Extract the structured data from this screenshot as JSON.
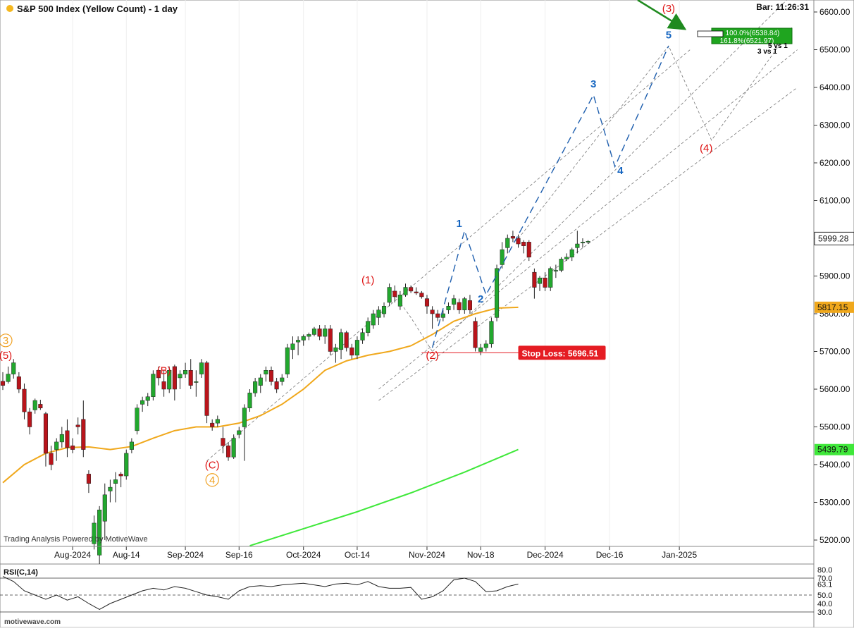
{
  "header": {
    "title": "S&P 500 Index (Yellow Count) - 1 day",
    "bar_time": "Bar: 11:26:31"
  },
  "watermark": "Trading Analysis Powered by MotiveWave",
  "footer": {
    "site": "motivewave.com"
  },
  "colors": {
    "up": "#22a82e",
    "down": "#b9141b",
    "ma_fast": "#f0a81c",
    "ma_slow": "#3fe83a",
    "wave_red": "#dd1111",
    "wave_blue": "#1565c0",
    "wave_orange": "#f0a020",
    "projection": "#1f5fae",
    "stop_loss": "#e51c23",
    "arrow": "#1f8a1f"
  },
  "chart_data": [
    {
      "type": "candlestick",
      "title": "S&P 500 Index (Yellow Count) - 1 day",
      "ylim": [
        5180,
        6650
      ],
      "y_ticks": [
        "5200.00",
        "5300.00",
        "5400.00",
        "5500.00",
        "5600.00",
        "5700.00",
        "5800.00",
        "5900.00",
        "6000.00",
        "6100.00",
        "6200.00",
        "6300.00",
        "6400.00",
        "6500.00",
        "6600.00"
      ],
      "y_tick_values": [
        5200,
        5300,
        5400,
        5500,
        5600,
        5700,
        5800,
        5900,
        6000,
        6100,
        6200,
        6300,
        6400,
        6500,
        6600
      ],
      "x_tick_labels": [
        "Aug-2024",
        "Aug-14",
        "Sep-2024",
        "Sep-16",
        "Oct-2024",
        "Oct-14",
        "Nov-2024",
        "Nov-18",
        "Dec-2024",
        "Dec-16",
        "Jan-2025"
      ],
      "x_tick_days": [
        13,
        23,
        34,
        44,
        56,
        66,
        79,
        89,
        101,
        113,
        126
      ],
      "candles": [
        [
          5621,
          5645,
          5598,
          5610
        ],
        [
          5620,
          5660,
          5615,
          5640
        ],
        [
          5640,
          5680,
          5628,
          5670
        ],
        [
          5633,
          5645,
          5590,
          5600
        ],
        [
          5600,
          5615,
          5520,
          5540
        ],
        [
          5540,
          5550,
          5480,
          5500
        ],
        [
          5545,
          5575,
          5535,
          5570
        ],
        [
          5560,
          5572,
          5545,
          5550
        ],
        [
          5535,
          5540,
          5395,
          5430
        ],
        [
          5430,
          5450,
          5385,
          5400
        ],
        [
          5440,
          5470,
          5410,
          5460
        ],
        [
          5460,
          5500,
          5445,
          5480
        ],
        [
          5490,
          5520,
          5420,
          5445
        ],
        [
          5450,
          5470,
          5430,
          5440
        ],
        [
          5505,
          5525,
          5480,
          5500
        ],
        [
          5520,
          5570,
          5420,
          5440
        ],
        [
          5375,
          5385,
          5325,
          5350
        ],
        [
          5190,
          5265,
          5175,
          5245
        ],
        [
          5160,
          5290,
          5130,
          5280
        ],
        [
          5250,
          5350,
          5200,
          5320
        ],
        [
          5330,
          5360,
          5300,
          5340
        ],
        [
          5350,
          5380,
          5300,
          5360
        ],
        [
          5375,
          5380,
          5340,
          5370
        ],
        [
          5370,
          5440,
          5360,
          5430
        ],
        [
          5440,
          5470,
          5430,
          5460
        ],
        [
          5490,
          5560,
          5480,
          5550
        ],
        [
          5560,
          5580,
          5540,
          5570
        ],
        [
          5570,
          5590,
          5555,
          5580
        ],
        [
          5580,
          5650,
          5570,
          5640
        ],
        [
          5650,
          5660,
          5610,
          5630
        ],
        [
          5620,
          5650,
          5580,
          5600
        ],
        [
          5600,
          5660,
          5590,
          5650
        ],
        [
          5660,
          5665,
          5570,
          5600
        ],
        [
          5630,
          5650,
          5600,
          5640
        ],
        [
          5640,
          5670,
          5630,
          5650
        ],
        [
          5650,
          5680,
          5600,
          5610
        ],
        [
          5620,
          5650,
          5580,
          5620
        ],
        [
          5640,
          5680,
          5630,
          5670
        ],
        [
          5670,
          5675,
          5510,
          5530
        ],
        [
          5510,
          5520,
          5490,
          5500
        ],
        [
          5510,
          5530,
          5500,
          5520
        ],
        [
          5470,
          5500,
          5430,
          5450
        ],
        [
          5450,
          5460,
          5410,
          5420
        ],
        [
          5420,
          5480,
          5415,
          5470
        ],
        [
          5480,
          5500,
          5470,
          5490
        ],
        [
          5500,
          5560,
          5410,
          5550
        ],
        [
          5550,
          5600,
          5540,
          5590
        ],
        [
          5590,
          5630,
          5580,
          5620
        ],
        [
          5610,
          5640,
          5590,
          5630
        ],
        [
          5640,
          5660,
          5620,
          5650
        ],
        [
          5650,
          5660,
          5610,
          5620
        ],
        [
          5620,
          5630,
          5590,
          5600
        ],
        [
          5620,
          5640,
          5610,
          5630
        ],
        [
          5640,
          5720,
          5630,
          5710
        ],
        [
          5705,
          5740,
          5680,
          5720
        ],
        [
          5725,
          5740,
          5690,
          5730
        ],
        [
          5730,
          5745,
          5715,
          5740
        ],
        [
          5740,
          5750,
          5730,
          5745
        ],
        [
          5745,
          5765,
          5740,
          5760
        ],
        [
          5760,
          5770,
          5730,
          5740
        ],
        [
          5740,
          5770,
          5720,
          5760
        ],
        [
          5760,
          5770,
          5690,
          5700
        ],
        [
          5700,
          5720,
          5670,
          5710
        ],
        [
          5705,
          5760,
          5680,
          5750
        ],
        [
          5750,
          5755,
          5700,
          5710
        ],
        [
          5710,
          5720,
          5680,
          5690
        ],
        [
          5690,
          5740,
          5680,
          5730
        ],
        [
          5730,
          5760,
          5720,
          5750
        ],
        [
          5750,
          5790,
          5740,
          5780
        ],
        [
          5770,
          5810,
          5760,
          5800
        ],
        [
          5790,
          5820,
          5770,
          5810
        ],
        [
          5800,
          5830,
          5790,
          5820
        ],
        [
          5830,
          5880,
          5820,
          5870
        ],
        [
          5860,
          5875,
          5830,
          5845
        ],
        [
          5820,
          5860,
          5810,
          5850
        ],
        [
          5850,
          5880,
          5845,
          5870
        ],
        [
          5870,
          5875,
          5855,
          5860
        ],
        [
          5858,
          5870,
          5850,
          5855
        ],
        [
          5855,
          5860,
          5840,
          5845
        ],
        [
          5840,
          5850,
          5800,
          5820
        ],
        [
          5810,
          5820,
          5760,
          5800
        ],
        [
          5800,
          5810,
          5780,
          5790
        ],
        [
          5790,
          5810,
          5780,
          5800
        ],
        [
          5810,
          5830,
          5800,
          5820
        ],
        [
          5825,
          5850,
          5810,
          5840
        ],
        [
          5830,
          5840,
          5800,
          5810
        ],
        [
          5810,
          5845,
          5800,
          5840
        ],
        [
          5835,
          5850,
          5800,
          5810
        ],
        [
          5780,
          5790,
          5700,
          5710
        ],
        [
          5700,
          5720,
          5690,
          5710
        ],
        [
          5710,
          5730,
          5700,
          5720
        ],
        [
          5720,
          5790,
          5710,
          5780
        ],
        [
          5790,
          5930,
          5780,
          5920
        ],
        [
          5930,
          5990,
          5920,
          5970
        ],
        [
          5975,
          6010,
          5960,
          6000
        ],
        [
          6005,
          6020,
          5990,
          6000
        ],
        [
          6000,
          6010,
          5975,
          5985
        ],
        [
          5990,
          5995,
          5960,
          5980
        ],
        [
          5990,
          5995,
          5940,
          5950
        ],
        [
          5910,
          5920,
          5840,
          5870
        ],
        [
          5880,
          5900,
          5860,
          5895
        ],
        [
          5895,
          5910,
          5860,
          5870
        ],
        [
          5870,
          5925,
          5860,
          5920
        ],
        [
          5915,
          5930,
          5895,
          5915
        ],
        [
          5915,
          5950,
          5910,
          5945
        ],
        [
          5945,
          5960,
          5940,
          5950
        ],
        [
          5950,
          5975,
          5940,
          5970
        ],
        [
          5975,
          6020,
          5960,
          5985
        ],
        [
          5990,
          6000,
          5975,
          5990
        ],
        [
          5990,
          5995,
          5985,
          5992
        ]
      ],
      "candle_start_day": 0,
      "ma_fast": {
        "name": "MA",
        "x": [
          0,
          4,
          8,
          12,
          16,
          20,
          24,
          28,
          32,
          36,
          40,
          44,
          48,
          52,
          56,
          60,
          64,
          68,
          72,
          76,
          80,
          84,
          88,
          92,
          96
        ],
        "y": [
          5352,
          5400,
          5430,
          5445,
          5447,
          5440,
          5448,
          5470,
          5490,
          5500,
          5500,
          5510,
          5530,
          5560,
          5600,
          5650,
          5675,
          5690,
          5700,
          5715,
          5745,
          5780,
          5800,
          5815,
          5817
        ],
        "last_value": "5817.15"
      },
      "ma_slow": {
        "name": "MA",
        "x": [
          46,
          56,
          66,
          76,
          86,
          96
        ],
        "y": [
          5185,
          5230,
          5275,
          5325,
          5380,
          5440
        ],
        "last_value": "5439.79"
      },
      "last_price": "5999.28",
      "stop_loss": {
        "label": "Stop Loss: 5696.51",
        "value": 5696.51,
        "from_day": 78,
        "to_day": 96
      },
      "channel_lines": [
        {
          "x": [
            80,
            148
          ],
          "y": [
            5700,
            6660
          ]
        },
        {
          "x": [
            70,
            148
          ],
          "y": [
            5600,
            6500
          ]
        },
        {
          "x": [
            70,
            148
          ],
          "y": [
            5570,
            6400
          ]
        },
        {
          "x": [
            38,
            128
          ],
          "y": [
            5410,
            6500
          ]
        }
      ],
      "subwave_path": {
        "x": [
          80,
          86,
          90,
          110,
          114,
          124
        ],
        "y": [
          5710,
          6020,
          5850,
          6380,
          6190,
          6510
        ]
      },
      "zigzag_path": {
        "x": [
          72,
          76,
          80
        ],
        "y": [
          5870,
          5790,
          5700
        ]
      },
      "forecast_path": {
        "x": [
          96,
          124,
          132,
          147
        ],
        "y": [
          5999,
          6510,
          6260,
          6560
        ]
      },
      "wave_labels": [
        {
          "text": "(1)",
          "day": 68,
          "y": 5880,
          "color": "red",
          "circle": false
        },
        {
          "text": "(2)",
          "day": 80,
          "y": 5680,
          "color": "red",
          "circle": false
        },
        {
          "text": "(3)",
          "day": 124,
          "y": 6600,
          "color": "red",
          "circle": false
        },
        {
          "text": "(4)",
          "day": 131,
          "y": 6230,
          "color": "red",
          "circle": false
        },
        {
          "text": "(B)",
          "day": 30,
          "y": 5640,
          "color": "red",
          "circle": false
        },
        {
          "text": "(C)",
          "day": 39,
          "y": 5390,
          "color": "red",
          "circle": false
        },
        {
          "text": "(5)",
          "day": 0,
          "y": 5680,
          "color": "red",
          "circle": false
        },
        {
          "text": "3",
          "day": 0,
          "y": 5720,
          "color": "orange",
          "circle": true
        },
        {
          "text": "4",
          "day": 39,
          "y": 5350,
          "color": "orange",
          "circle": true
        },
        {
          "text": "1",
          "day": 85,
          "y": 6030,
          "color": "blue",
          "circle": false
        },
        {
          "text": "2",
          "day": 89,
          "y": 5830,
          "color": "blue",
          "circle": false
        },
        {
          "text": "3",
          "day": 110,
          "y": 6400,
          "color": "blue",
          "circle": false
        },
        {
          "text": "4",
          "day": 115,
          "y": 6170,
          "color": "blue",
          "circle": false
        },
        {
          "text": "5",
          "day": 124,
          "y": 6530,
          "color": "blue",
          "circle": false
        }
      ],
      "annotations": [
        "100.0%(6538.84)",
        "161.8%(6521.97)",
        "5 vs 1",
        "3 vs 1"
      ]
    },
    {
      "type": "line",
      "title": "RSI(C,14)",
      "ylim": [
        25,
        85
      ],
      "y_ticks": [
        "80.0",
        "70.0",
        "63.1",
        "50.0",
        "40.0",
        "30.0"
      ],
      "y_tick_values": [
        80,
        70,
        63.1,
        50,
        40,
        30
      ],
      "levels": [
        70,
        50,
        30
      ],
      "x": [
        0,
        2,
        4,
        6,
        8,
        10,
        12,
        14,
        16,
        18,
        20,
        22,
        24,
        26,
        28,
        30,
        32,
        34,
        36,
        38,
        40,
        42,
        44,
        46,
        48,
        50,
        52,
        54,
        56,
        58,
        60,
        62,
        64,
        66,
        68,
        70,
        72,
        74,
        76,
        78,
        80,
        82,
        84,
        86,
        88,
        90,
        92,
        94,
        96
      ],
      "y": [
        72,
        66,
        55,
        50,
        45,
        50,
        44,
        48,
        40,
        33,
        40,
        45,
        50,
        55,
        58,
        56,
        60,
        58,
        54,
        50,
        48,
        45,
        55,
        60,
        61,
        60,
        62,
        63,
        64,
        62,
        60,
        63,
        64,
        62,
        66,
        60,
        58,
        58,
        59,
        45,
        48,
        55,
        68,
        70,
        66,
        54,
        55,
        60,
        63
      ]
    }
  ]
}
